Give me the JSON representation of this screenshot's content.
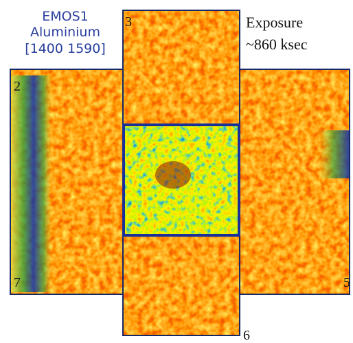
{
  "instrument": {
    "lines": [
      "EMOS1",
      "Aluminium",
      "[1400 1590]"
    ]
  },
  "exposure": {
    "lines": [
      "Exposure",
      "~860 ksec"
    ]
  },
  "ccd_labels": {
    "top": "3",
    "upper_left": "2",
    "lower_left": "7",
    "lower_right": "5",
    "bottom": "6"
  }
}
